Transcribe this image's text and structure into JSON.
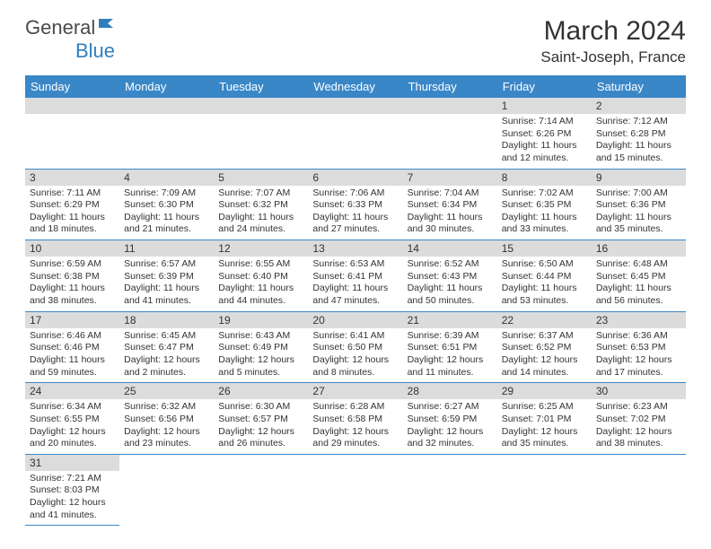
{
  "logo": {
    "part1": "General",
    "part2": "Blue",
    "icon_color": "#2f7fbf"
  },
  "title": "March 2024",
  "location": "Saint-Joseph, France",
  "header_bg": "#3a87c7",
  "header_text": "#ffffff",
  "daynum_bg": "#dcdcdc",
  "row_border": "#3a87c7",
  "weekdays": [
    "Sunday",
    "Monday",
    "Tuesday",
    "Wednesday",
    "Thursday",
    "Friday",
    "Saturday"
  ],
  "weeks": [
    [
      null,
      null,
      null,
      null,
      null,
      {
        "n": "1",
        "sr": "Sunrise: 7:14 AM",
        "ss": "Sunset: 6:26 PM",
        "dl": "Daylight: 11 hours and 12 minutes."
      },
      {
        "n": "2",
        "sr": "Sunrise: 7:12 AM",
        "ss": "Sunset: 6:28 PM",
        "dl": "Daylight: 11 hours and 15 minutes."
      }
    ],
    [
      {
        "n": "3",
        "sr": "Sunrise: 7:11 AM",
        "ss": "Sunset: 6:29 PM",
        "dl": "Daylight: 11 hours and 18 minutes."
      },
      {
        "n": "4",
        "sr": "Sunrise: 7:09 AM",
        "ss": "Sunset: 6:30 PM",
        "dl": "Daylight: 11 hours and 21 minutes."
      },
      {
        "n": "5",
        "sr": "Sunrise: 7:07 AM",
        "ss": "Sunset: 6:32 PM",
        "dl": "Daylight: 11 hours and 24 minutes."
      },
      {
        "n": "6",
        "sr": "Sunrise: 7:06 AM",
        "ss": "Sunset: 6:33 PM",
        "dl": "Daylight: 11 hours and 27 minutes."
      },
      {
        "n": "7",
        "sr": "Sunrise: 7:04 AM",
        "ss": "Sunset: 6:34 PM",
        "dl": "Daylight: 11 hours and 30 minutes."
      },
      {
        "n": "8",
        "sr": "Sunrise: 7:02 AM",
        "ss": "Sunset: 6:35 PM",
        "dl": "Daylight: 11 hours and 33 minutes."
      },
      {
        "n": "9",
        "sr": "Sunrise: 7:00 AM",
        "ss": "Sunset: 6:36 PM",
        "dl": "Daylight: 11 hours and 35 minutes."
      }
    ],
    [
      {
        "n": "10",
        "sr": "Sunrise: 6:59 AM",
        "ss": "Sunset: 6:38 PM",
        "dl": "Daylight: 11 hours and 38 minutes."
      },
      {
        "n": "11",
        "sr": "Sunrise: 6:57 AM",
        "ss": "Sunset: 6:39 PM",
        "dl": "Daylight: 11 hours and 41 minutes."
      },
      {
        "n": "12",
        "sr": "Sunrise: 6:55 AM",
        "ss": "Sunset: 6:40 PM",
        "dl": "Daylight: 11 hours and 44 minutes."
      },
      {
        "n": "13",
        "sr": "Sunrise: 6:53 AM",
        "ss": "Sunset: 6:41 PM",
        "dl": "Daylight: 11 hours and 47 minutes."
      },
      {
        "n": "14",
        "sr": "Sunrise: 6:52 AM",
        "ss": "Sunset: 6:43 PM",
        "dl": "Daylight: 11 hours and 50 minutes."
      },
      {
        "n": "15",
        "sr": "Sunrise: 6:50 AM",
        "ss": "Sunset: 6:44 PM",
        "dl": "Daylight: 11 hours and 53 minutes."
      },
      {
        "n": "16",
        "sr": "Sunrise: 6:48 AM",
        "ss": "Sunset: 6:45 PM",
        "dl": "Daylight: 11 hours and 56 minutes."
      }
    ],
    [
      {
        "n": "17",
        "sr": "Sunrise: 6:46 AM",
        "ss": "Sunset: 6:46 PM",
        "dl": "Daylight: 11 hours and 59 minutes."
      },
      {
        "n": "18",
        "sr": "Sunrise: 6:45 AM",
        "ss": "Sunset: 6:47 PM",
        "dl": "Daylight: 12 hours and 2 minutes."
      },
      {
        "n": "19",
        "sr": "Sunrise: 6:43 AM",
        "ss": "Sunset: 6:49 PM",
        "dl": "Daylight: 12 hours and 5 minutes."
      },
      {
        "n": "20",
        "sr": "Sunrise: 6:41 AM",
        "ss": "Sunset: 6:50 PM",
        "dl": "Daylight: 12 hours and 8 minutes."
      },
      {
        "n": "21",
        "sr": "Sunrise: 6:39 AM",
        "ss": "Sunset: 6:51 PM",
        "dl": "Daylight: 12 hours and 11 minutes."
      },
      {
        "n": "22",
        "sr": "Sunrise: 6:37 AM",
        "ss": "Sunset: 6:52 PM",
        "dl": "Daylight: 12 hours and 14 minutes."
      },
      {
        "n": "23",
        "sr": "Sunrise: 6:36 AM",
        "ss": "Sunset: 6:53 PM",
        "dl": "Daylight: 12 hours and 17 minutes."
      }
    ],
    [
      {
        "n": "24",
        "sr": "Sunrise: 6:34 AM",
        "ss": "Sunset: 6:55 PM",
        "dl": "Daylight: 12 hours and 20 minutes."
      },
      {
        "n": "25",
        "sr": "Sunrise: 6:32 AM",
        "ss": "Sunset: 6:56 PM",
        "dl": "Daylight: 12 hours and 23 minutes."
      },
      {
        "n": "26",
        "sr": "Sunrise: 6:30 AM",
        "ss": "Sunset: 6:57 PM",
        "dl": "Daylight: 12 hours and 26 minutes."
      },
      {
        "n": "27",
        "sr": "Sunrise: 6:28 AM",
        "ss": "Sunset: 6:58 PM",
        "dl": "Daylight: 12 hours and 29 minutes."
      },
      {
        "n": "28",
        "sr": "Sunrise: 6:27 AM",
        "ss": "Sunset: 6:59 PM",
        "dl": "Daylight: 12 hours and 32 minutes."
      },
      {
        "n": "29",
        "sr": "Sunrise: 6:25 AM",
        "ss": "Sunset: 7:01 PM",
        "dl": "Daylight: 12 hours and 35 minutes."
      },
      {
        "n": "30",
        "sr": "Sunrise: 6:23 AM",
        "ss": "Sunset: 7:02 PM",
        "dl": "Daylight: 12 hours and 38 minutes."
      }
    ],
    [
      {
        "n": "31",
        "sr": "Sunrise: 7:21 AM",
        "ss": "Sunset: 8:03 PM",
        "dl": "Daylight: 12 hours and 41 minutes."
      },
      null,
      null,
      null,
      null,
      null,
      null
    ]
  ]
}
